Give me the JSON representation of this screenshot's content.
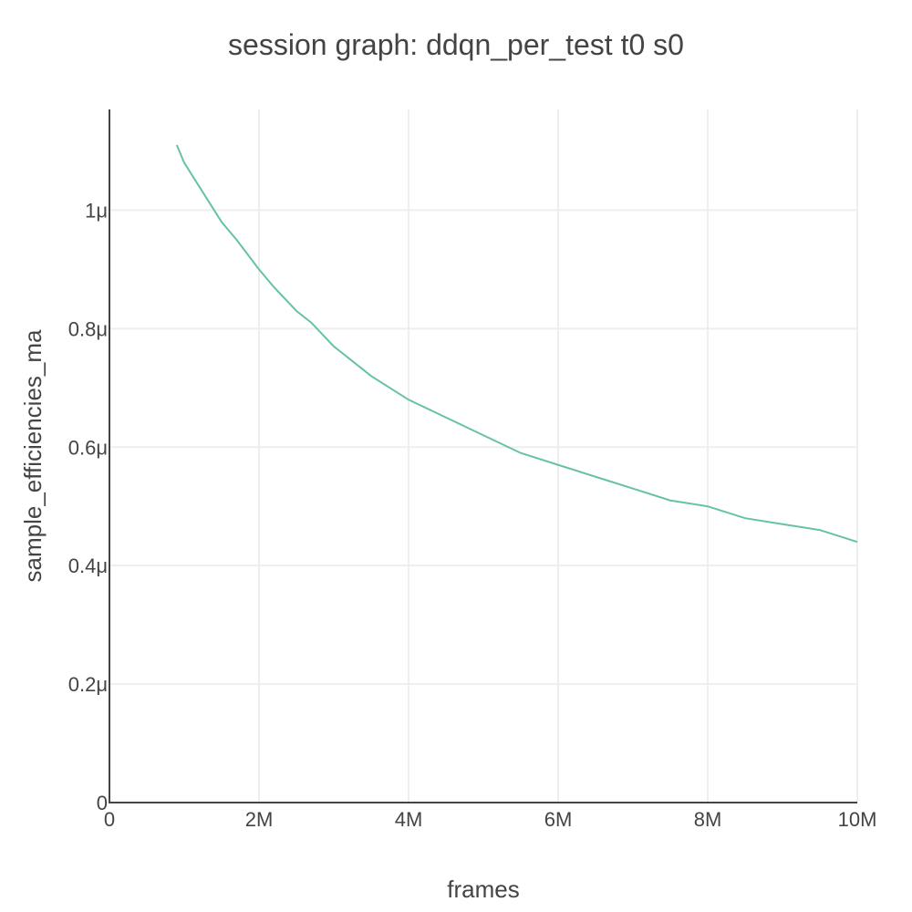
{
  "chart_data": {
    "type": "line",
    "title": "session graph: ddqn_per_test t0 s0",
    "xlabel": "frames",
    "ylabel": "sample_efficiencies_ma",
    "xlim": [
      0,
      10000000
    ],
    "ylim": [
      0,
      1.17e-06
    ],
    "grid": true,
    "x_ticks": [
      {
        "value": 0,
        "label": "0"
      },
      {
        "value": 2000000,
        "label": "2M"
      },
      {
        "value": 4000000,
        "label": "4M"
      },
      {
        "value": 6000000,
        "label": "6M"
      },
      {
        "value": 8000000,
        "label": "8M"
      },
      {
        "value": 10000000,
        "label": "10M"
      }
    ],
    "y_ticks": [
      {
        "value": 0,
        "label": "0"
      },
      {
        "value": 2e-07,
        "label": "0.2μ"
      },
      {
        "value": 4e-07,
        "label": "0.4μ"
      },
      {
        "value": 6e-07,
        "label": "0.6μ"
      },
      {
        "value": 8e-07,
        "label": "0.8μ"
      },
      {
        "value": 1e-06,
        "label": "1μ"
      }
    ],
    "series": [
      {
        "color": "#66c2a5",
        "x": [
          900000,
          1000000,
          1100000,
          1200000,
          1300000,
          1400000,
          1500000,
          1700000,
          2000000,
          2200000,
          2500000,
          2700000,
          3000000,
          3500000,
          4000000,
          4500000,
          5000000,
          5500000,
          6000000,
          6500000,
          7000000,
          7500000,
          8000000,
          8500000,
          9000000,
          9500000,
          10000000
        ],
        "y": [
          1.11e-06,
          1.08e-06,
          1.06e-06,
          1.04e-06,
          1.02e-06,
          1e-06,
          9.8e-07,
          9.5e-07,
          9e-07,
          8.7e-07,
          8.3e-07,
          8.1e-07,
          7.7e-07,
          7.2e-07,
          6.8e-07,
          6.5e-07,
          6.2e-07,
          5.9e-07,
          5.7e-07,
          5.5e-07,
          5.3e-07,
          5.1e-07,
          5e-07,
          4.8e-07,
          4.7e-07,
          4.6e-07,
          4.4e-07
        ]
      }
    ]
  }
}
